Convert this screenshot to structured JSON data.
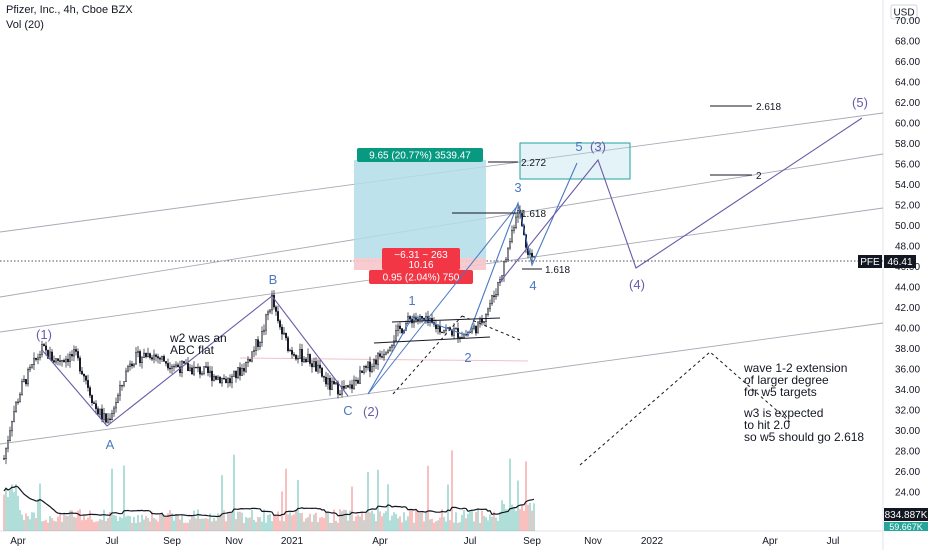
{
  "header": {
    "title": "Pfizer, Inc., 4h, Cboe BZX",
    "volume": "Vol (20)"
  },
  "currency": "USD",
  "price_axis": {
    "labels": [
      "70.00",
      "68.00",
      "66.00",
      "64.00",
      "62.00",
      "60.00",
      "58.00",
      "56.00",
      "54.00",
      "52.00",
      "50.00",
      "48.00",
      "46.00",
      "44.00",
      "42.00",
      "40.00",
      "38.00",
      "36.00",
      "34.00",
      "32.00",
      "30.00",
      "28.00",
      "26.00",
      "24.00"
    ],
    "current": {
      "symbol": "PFE",
      "price": "46.41"
    },
    "volume_tag": "834.887K",
    "volume_avg_tag": "59.667K"
  },
  "time_axis": [
    "Apr",
    "Jul",
    "Sep",
    "Nov",
    "2021",
    "Apr",
    "Jul",
    "Sep",
    "Nov",
    "2022",
    "Apr",
    "Jul"
  ],
  "waves": {
    "w1": "(1)",
    "A": "A",
    "B": "B",
    "C": "C",
    "w2": "(2)",
    "s1": "1",
    "s2": "2",
    "s3": "3",
    "s4": "4",
    "s5": "5",
    "w3": "(3)",
    "w4": "(4)",
    "w5": "(5)"
  },
  "fib_levels": {
    "f2618": "2.618",
    "f2": "2",
    "f2272": "2.272",
    "f1618a": "1.618",
    "f1618b": "1.618"
  },
  "position_tool": {
    "target": "9.65 (20.77%) 3539.47",
    "middle_top": "−6.31 ~ 263",
    "middle_value": "10.16",
    "stop": "0.95 (2.04%) 750"
  },
  "notes": {
    "flat_line1": "w2 was an",
    "flat_line2": "ABC flat",
    "ext_line1": "wave 1-2 extension",
    "ext_line2": "of larger degree",
    "ext_line3": "for w5 targets",
    "w3_line1": "w3 is expected",
    "w3_line2": "to hit 2.0",
    "w3_line3": "so w5 should go 2.618"
  },
  "colors": {
    "candle": "#131722",
    "wave_blue": "#4a78c2",
    "wave_purple": "#6a5aa8",
    "target_fill": "#b2dde8",
    "stop_fill": "#f5c6cc",
    "target_tag": "#089981",
    "stop_tag": "#f23645",
    "price_tag": "#131722"
  },
  "chart_data": {
    "type": "candlestick",
    "title": "Pfizer, Inc., 4h, Cboe BZX",
    "ylim": [
      22.5,
      71
    ],
    "x": [
      "2020-03",
      "2020-04",
      "2020-05",
      "2020-06",
      "2020-07",
      "2020-08",
      "2020-09",
      "2020-10",
      "2020-11",
      "2020-12",
      "2021-01",
      "2021-02",
      "2021-03",
      "2021-04",
      "2021-05",
      "2021-06",
      "2021-07",
      "2021-08",
      "2021-09"
    ],
    "close": [
      27,
      36,
      37,
      35,
      32,
      36,
      37,
      36,
      41,
      38,
      37,
      35,
      34,
      37,
      40,
      40,
      41,
      50,
      46.41
    ],
    "current_price": 46.41,
    "projection": {
      "wave3_target": 55.5,
      "wave4_target": 46,
      "wave5_target": 60.5,
      "fib_2618": 61.6,
      "fib_2": 55
    }
  }
}
